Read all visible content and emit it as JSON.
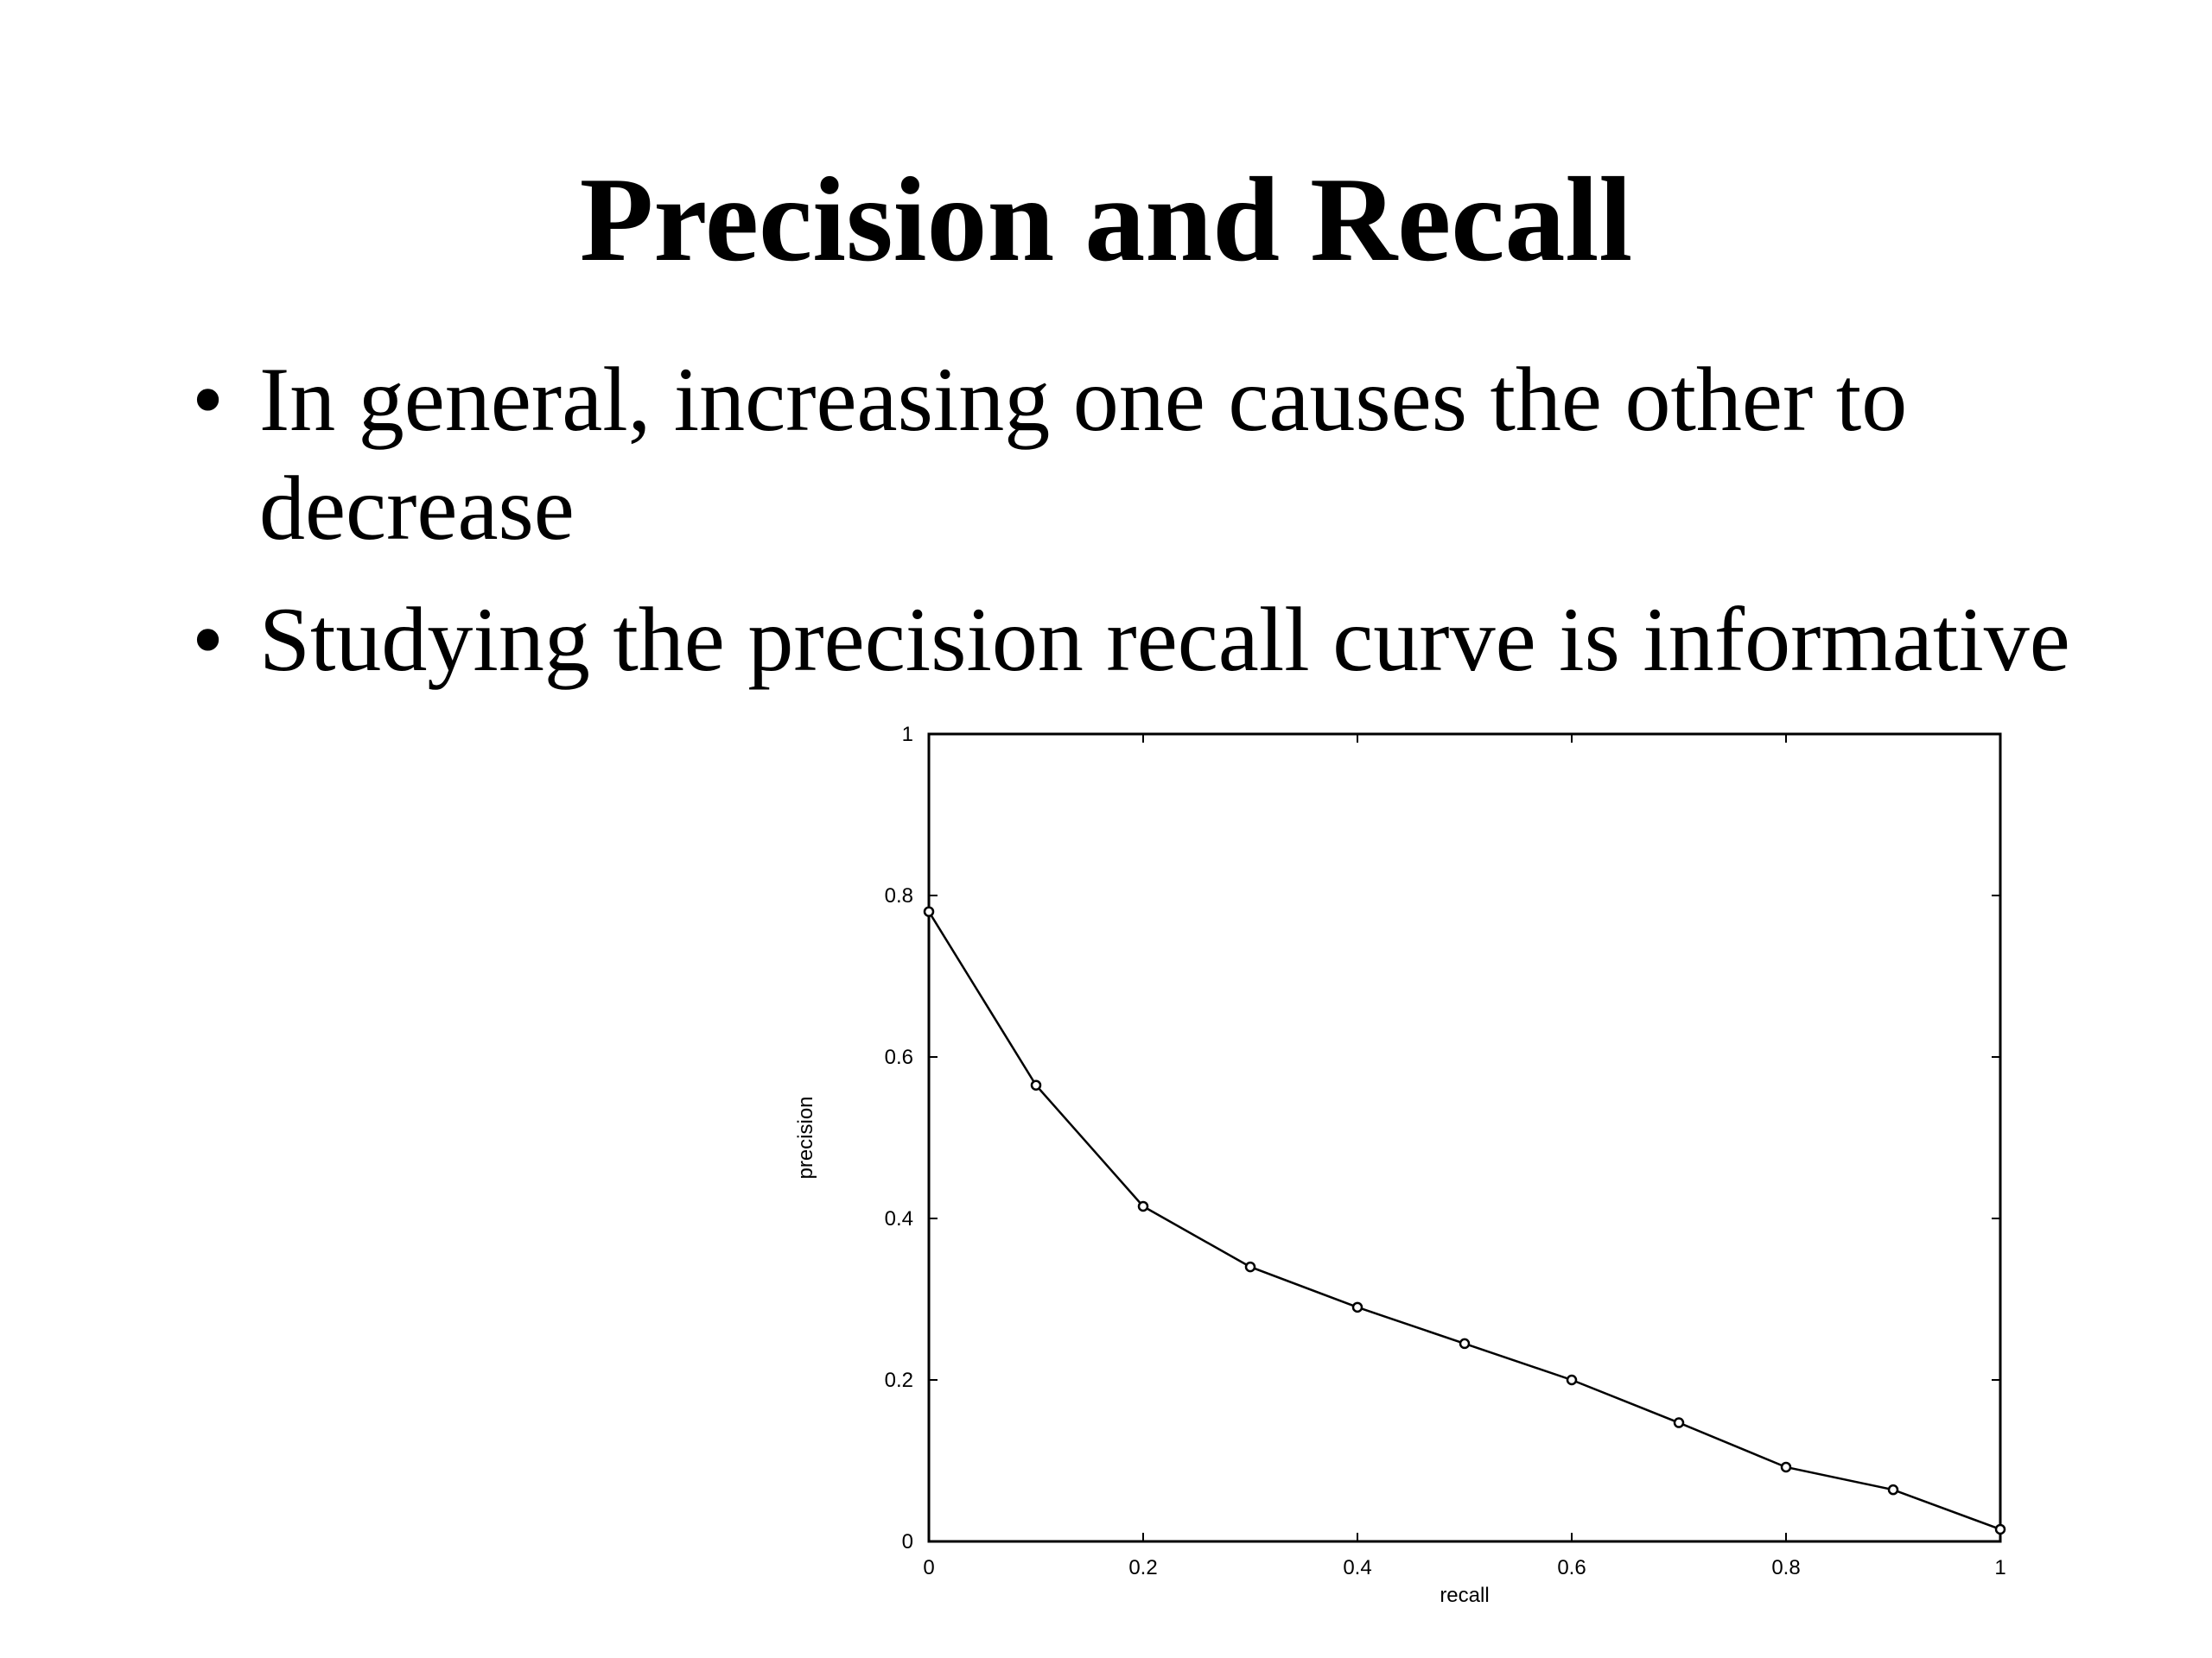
{
  "slide": {
    "title": "Precision and Recall",
    "bullets": [
      "In general, increasing one causes the other to decrease",
      "Studying the precision recall curve is informative"
    ]
  },
  "chart_data": {
    "type": "line",
    "title": "",
    "xlabel": "recall",
    "ylabel": "precision",
    "xlim": [
      0,
      1
    ],
    "ylim": [
      0,
      1
    ],
    "x_ticks": [
      0,
      0.2,
      0.4,
      0.6,
      0.8,
      1
    ],
    "x_tick_labels": [
      "0",
      "0.2",
      "0.4",
      "0.6",
      "0.8",
      "1"
    ],
    "y_ticks": [
      0,
      0.2,
      0.4,
      0.6,
      0.8,
      1
    ],
    "y_tick_labels": [
      "0",
      "0.2",
      "0.4",
      "0.6",
      "0.8",
      "1"
    ],
    "grid": false,
    "series": [
      {
        "x": [
          0,
          0.1,
          0.2,
          0.3,
          0.4,
          0.5,
          0.6,
          0.7,
          0.8,
          0.9,
          1.0
        ],
        "y": [
          0.78,
          0.565,
          0.415,
          0.34,
          0.29,
          0.245,
          0.2,
          0.147,
          0.092,
          0.064,
          0.015
        ]
      }
    ]
  }
}
